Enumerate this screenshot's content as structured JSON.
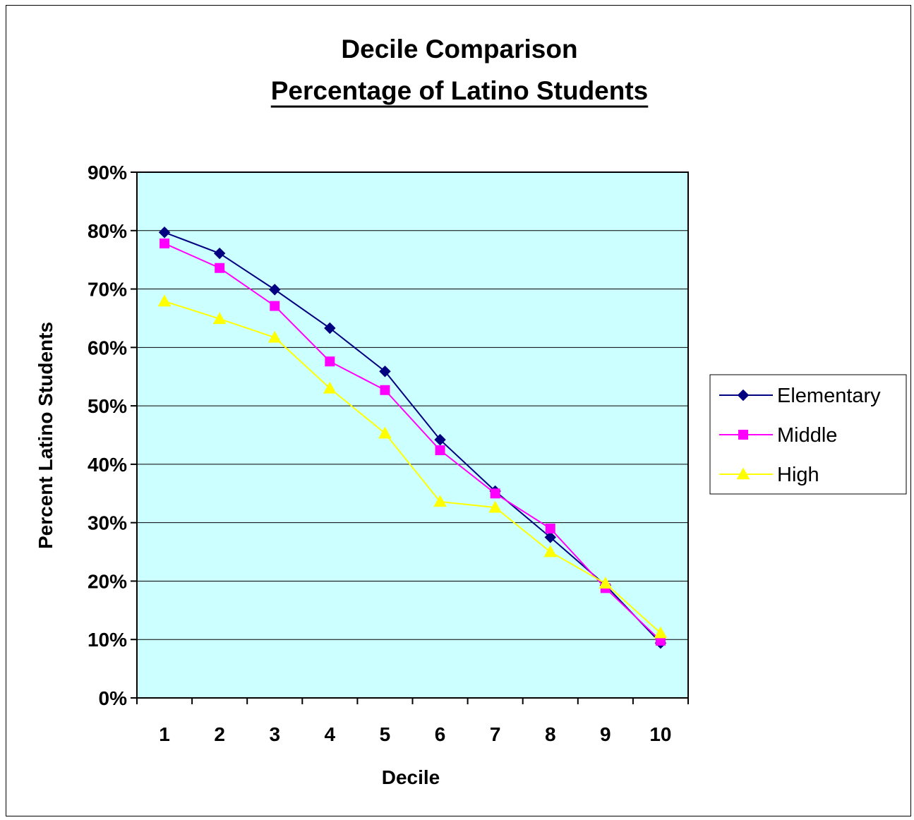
{
  "chart_data": {
    "type": "line",
    "title": "Decile Comparison",
    "subtitle": "Percentage of Latino Students",
    "xlabel": "Decile",
    "ylabel": "Percent Latino Students",
    "categories": [
      "1",
      "2",
      "3",
      "4",
      "5",
      "6",
      "7",
      "8",
      "9",
      "10"
    ],
    "ylim": [
      0,
      90
    ],
    "y_ticks": [
      0,
      10,
      20,
      30,
      40,
      50,
      60,
      70,
      80,
      90
    ],
    "y_tick_labels": [
      "0%",
      "10%",
      "20%",
      "30%",
      "40%",
      "50%",
      "60%",
      "70%",
      "80%",
      "90%"
    ],
    "grid": true,
    "legend_position": "right",
    "plot_background": "#ccffff",
    "series": [
      {
        "name": "Elementary",
        "color": "#000080",
        "marker": "diamond",
        "values": [
          79.7,
          76.1,
          69.9,
          63.3,
          55.9,
          44.2,
          35.4,
          27.5,
          19.3,
          9.4
        ]
      },
      {
        "name": "Middle",
        "color": "#ff00ff",
        "marker": "square",
        "values": [
          77.8,
          73.6,
          67.1,
          57.6,
          52.7,
          42.4,
          35.0,
          29.0,
          18.8,
          9.8
        ]
      },
      {
        "name": "High",
        "color": "#ffff00",
        "marker": "triangle",
        "values": [
          67.9,
          64.9,
          61.7,
          53.0,
          45.3,
          33.6,
          32.6,
          25.0,
          19.6,
          11.1
        ]
      }
    ]
  }
}
